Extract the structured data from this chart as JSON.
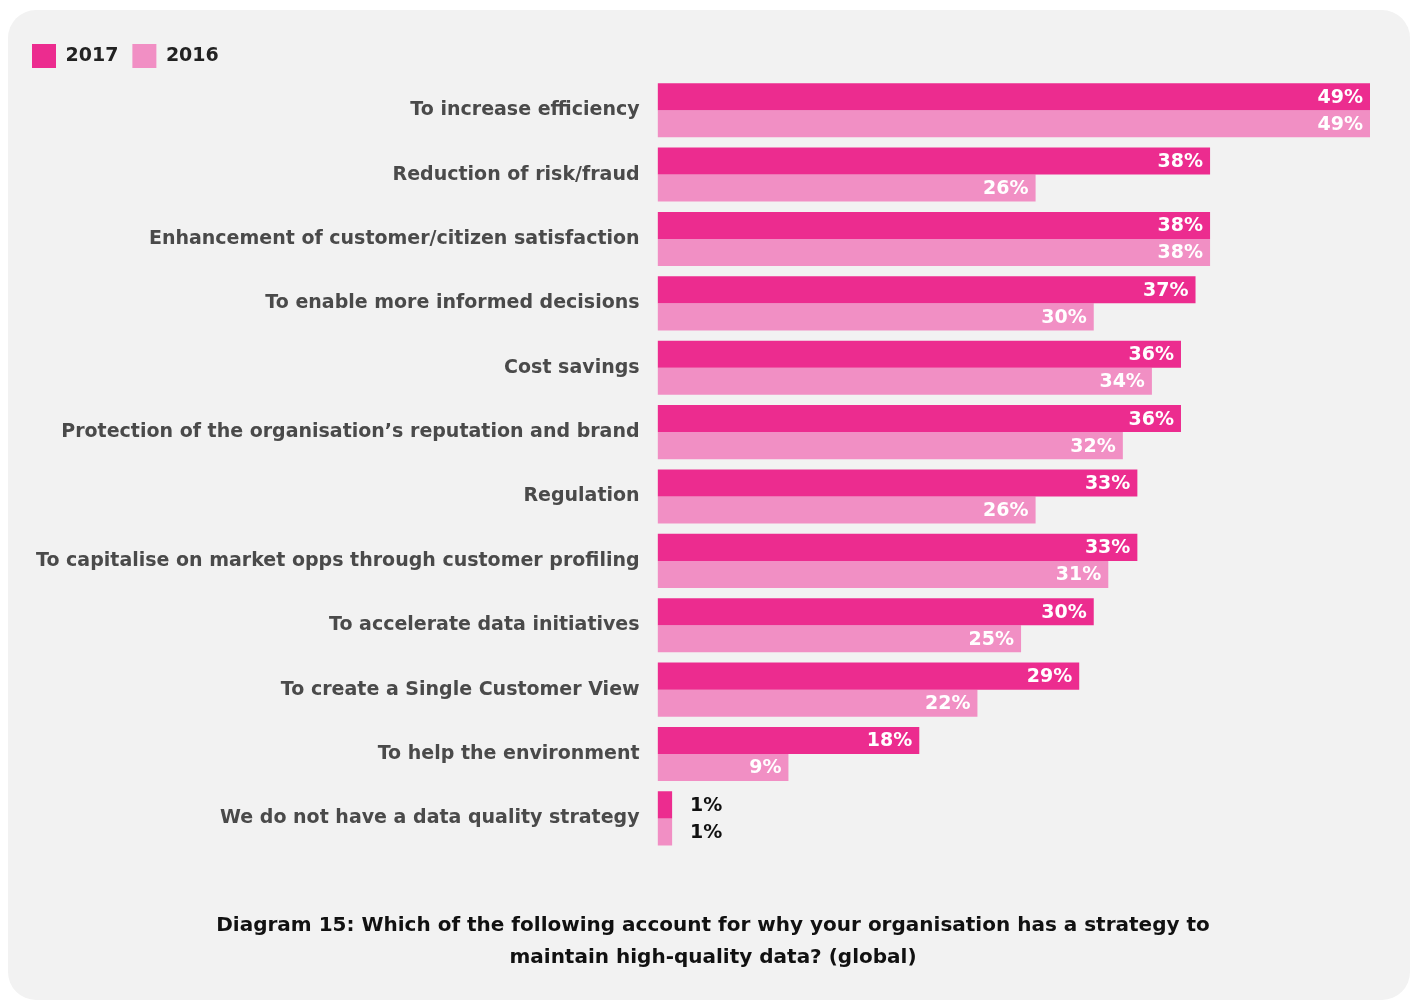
{
  "chart_data": {
    "type": "bar",
    "orientation": "horizontal",
    "title": "Diagram 15: Which of the following account for why your organisation has a strategy to maintain high-quality data? (global)",
    "categories": [
      "To increase efficiency",
      "Reduction of risk/fraud",
      "Enhancement of customer/citizen satisfaction",
      "To enable more informed decisions",
      "Cost savings",
      "Protection of the organisation’s reputation and brand",
      "Regulation",
      "To capitalise on market opps through customer profiling",
      "To accelerate data initiatives",
      "To create a Single Customer View",
      "To help the environment",
      "We do not have a data quality strategy"
    ],
    "series": [
      {
        "name": "2017",
        "color": "#ec2c8f",
        "values": [
          49,
          38,
          38,
          37,
          36,
          36,
          33,
          33,
          30,
          29,
          18,
          1
        ],
        "value_labels": [
          "49%",
          "38%",
          "38%",
          "37%",
          "36%",
          "36%",
          "33%",
          "33%",
          "30%",
          "29%",
          "18%",
          "1%"
        ]
      },
      {
        "name": "2016",
        "color": "#f18fc4",
        "values": [
          49,
          26,
          38,
          30,
          34,
          32,
          26,
          31,
          25,
          22,
          9,
          1
        ],
        "value_labels": [
          "49%",
          "26%",
          "38%",
          "30%",
          "34%",
          "32%",
          "26%",
          "31%",
          "25%",
          "22%",
          "9%",
          "1%"
        ]
      }
    ],
    "legend": "top left",
    "grid": false
  }
}
